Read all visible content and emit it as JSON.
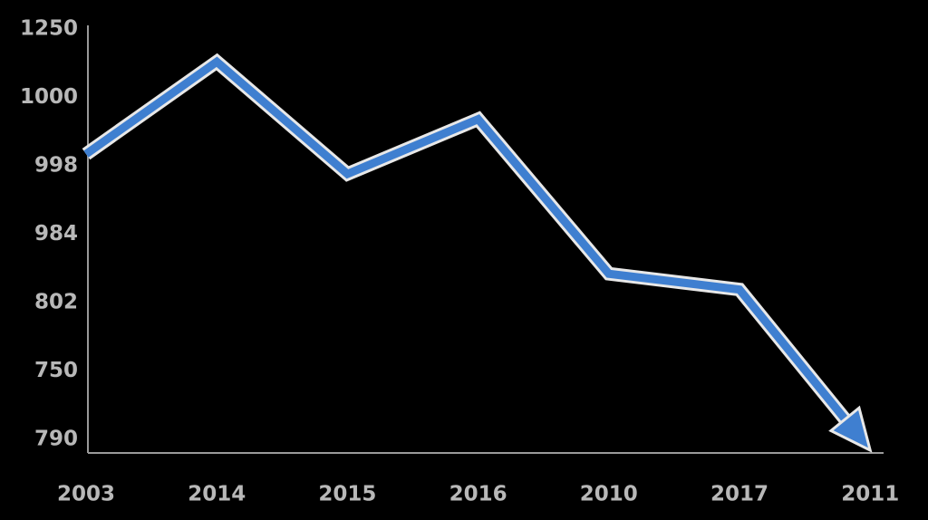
{
  "chart_data": {
    "type": "line",
    "categories": [
      "2003",
      "2014",
      "2015",
      "2016",
      "2010",
      "2017",
      "2011"
    ],
    "y_axis_labels": [
      "790",
      "750",
      "802",
      "984",
      "998",
      "1000",
      "1250"
    ],
    "values": [
      4.17,
      5.52,
      3.88,
      4.68,
      2.42,
      2.19,
      -0.16
    ],
    "color": "#3f7fd0",
    "ylim": [
      -0.2,
      6.0
    ],
    "arrow": true
  }
}
